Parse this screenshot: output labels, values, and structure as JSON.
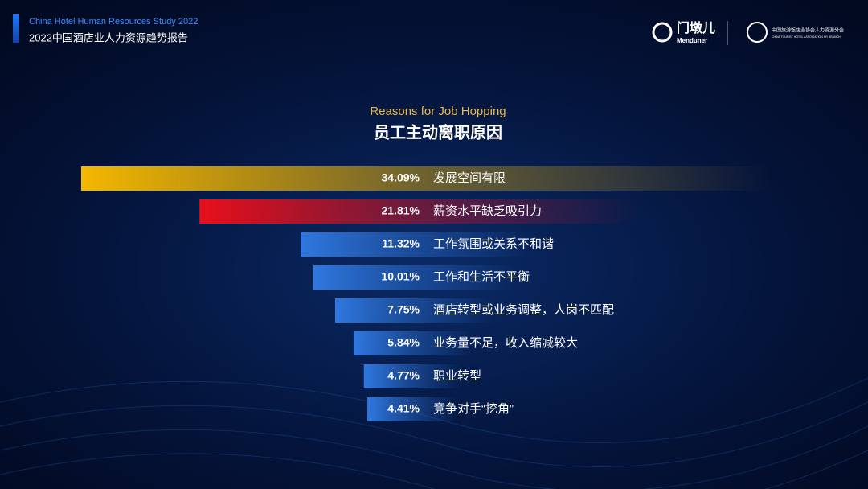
{
  "header": {
    "subtitle_en": "China Hotel Human Resources Study 2022",
    "title_cn": "2022中国酒店业人力资源趋势报告",
    "logo1_cn": "门墩儿",
    "logo1_en": "Menduner",
    "logo2_cn": "中国旅游饭店业协会人力资源分会",
    "logo2_en": "CHINA TOURIST HOTEL ASSOCIATION HR BRANCH"
  },
  "chart_data": {
    "type": "bar",
    "orientation": "horizontal",
    "title": "Reasons for Job Hopping",
    "subtitle": "员工主动离职原因",
    "categories": [
      "发展空间有限",
      "薪资水平缺乏吸引力",
      "工作氛围或关系不和谐",
      "工作和生活不平衡",
      "酒店转型或业务调整，人岗不匹配",
      "业务量不足，收入缩减较大",
      "职业转型",
      "竞争对手“挖角”"
    ],
    "values": [
      34.09,
      21.81,
      11.32,
      10.01,
      7.75,
      5.84,
      4.77,
      4.41
    ],
    "value_labels": [
      "34.09%",
      "21.81%",
      "11.32%",
      "10.01%",
      "7.75%",
      "5.84%",
      "4.77%",
      "4.41%"
    ],
    "colors": [
      "#f5b800",
      "#e8101c",
      "#2f78e0",
      "#2f78e0",
      "#2f78e0",
      "#2f78e0",
      "#2f78e0",
      "#2f78e0"
    ]
  }
}
